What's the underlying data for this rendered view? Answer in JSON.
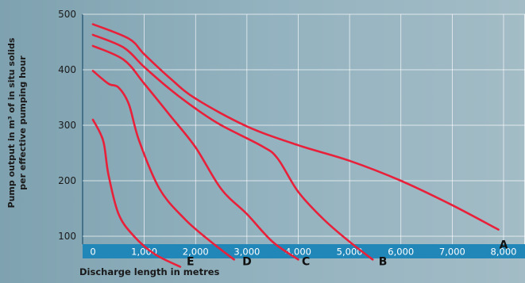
{
  "chart_data": {
    "type": "line",
    "title": "",
    "ylabel_line1": "Pump output in m³ of in situ solids",
    "ylabel_line2": "per effective pumping hour",
    "xlabel": "Discharge length in metres",
    "xlim": [
      0,
      8000
    ],
    "ylim": [
      0,
      500
    ],
    "x_ticks": [
      {
        "value": 0,
        "label": "0"
      },
      {
        "value": 1000,
        "label": "1,000"
      },
      {
        "value": 2000,
        "label": "2,000"
      },
      {
        "value": 3000,
        "label": "3,000"
      },
      {
        "value": 4000,
        "label": "4,000"
      },
      {
        "value": 5000,
        "label": "5,000"
      },
      {
        "value": 6000,
        "label": "6,000"
      },
      {
        "value": 7000,
        "label": "7,000"
      },
      {
        "value": 8000,
        "label": "8,000"
      }
    ],
    "y_ticks": [
      {
        "value": 100,
        "label": "100"
      },
      {
        "value": 200,
        "label": "200"
      },
      {
        "value": 300,
        "label": "300"
      },
      {
        "value": 400,
        "label": "400"
      },
      {
        "value": 500,
        "label": "500"
      }
    ],
    "grid": true,
    "line_color": "#e8203a",
    "axis_band_color": "#2186b8",
    "series": [
      {
        "name": "A",
        "x": [
          0,
          700,
          1000,
          1500,
          2000,
          3000,
          4000,
          5000,
          6000,
          7000,
          7900
        ],
        "y": [
          482,
          456,
          428,
          385,
          348,
          298,
          264,
          236,
          200,
          156,
          112
        ]
      },
      {
        "name": "B",
        "x": [
          0,
          600,
          1000,
          1500,
          2000,
          2500,
          3300,
          3600,
          4000,
          4500,
          5000,
          5450
        ],
        "y": [
          463,
          440,
          405,
          365,
          330,
          300,
          262,
          240,
          180,
          130,
          90,
          58
        ]
      },
      {
        "name": "C",
        "x": [
          0,
          600,
          1000,
          1500,
          2000,
          2500,
          3000,
          3500,
          4000
        ],
        "y": [
          443,
          418,
          375,
          318,
          260,
          185,
          140,
          90,
          58
        ]
      },
      {
        "name": "D",
        "x": [
          0,
          300,
          500,
          700,
          900,
          1300,
          1800,
          2300,
          2750
        ],
        "y": [
          398,
          375,
          368,
          338,
          272,
          185,
          130,
          90,
          58
        ]
      },
      {
        "name": "E",
        "x": [
          0,
          200,
          300,
          500,
          800,
          1200,
          1700
        ],
        "y": [
          310,
          272,
          212,
          140,
          100,
          68,
          45
        ]
      }
    ],
    "series_label_positions": [
      {
        "name": "A",
        "x": 8000,
        "y": 78
      },
      {
        "name": "B",
        "x": 5650,
        "y": 48
      },
      {
        "name": "C",
        "x": 4150,
        "y": 48
      },
      {
        "name": "D",
        "x": 3000,
        "y": 48
      },
      {
        "name": "E",
        "x": 1900,
        "y": 48
      }
    ]
  }
}
